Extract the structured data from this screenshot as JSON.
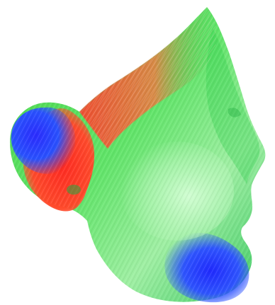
{
  "image": {
    "description_colors": {
      "background": "#ffffff",
      "green": "#39d84a",
      "light_green": "#b7f2b8",
      "red": "#ff3a2a",
      "blue": "#2a32ff"
    },
    "subject": "3d-head-mesh"
  }
}
